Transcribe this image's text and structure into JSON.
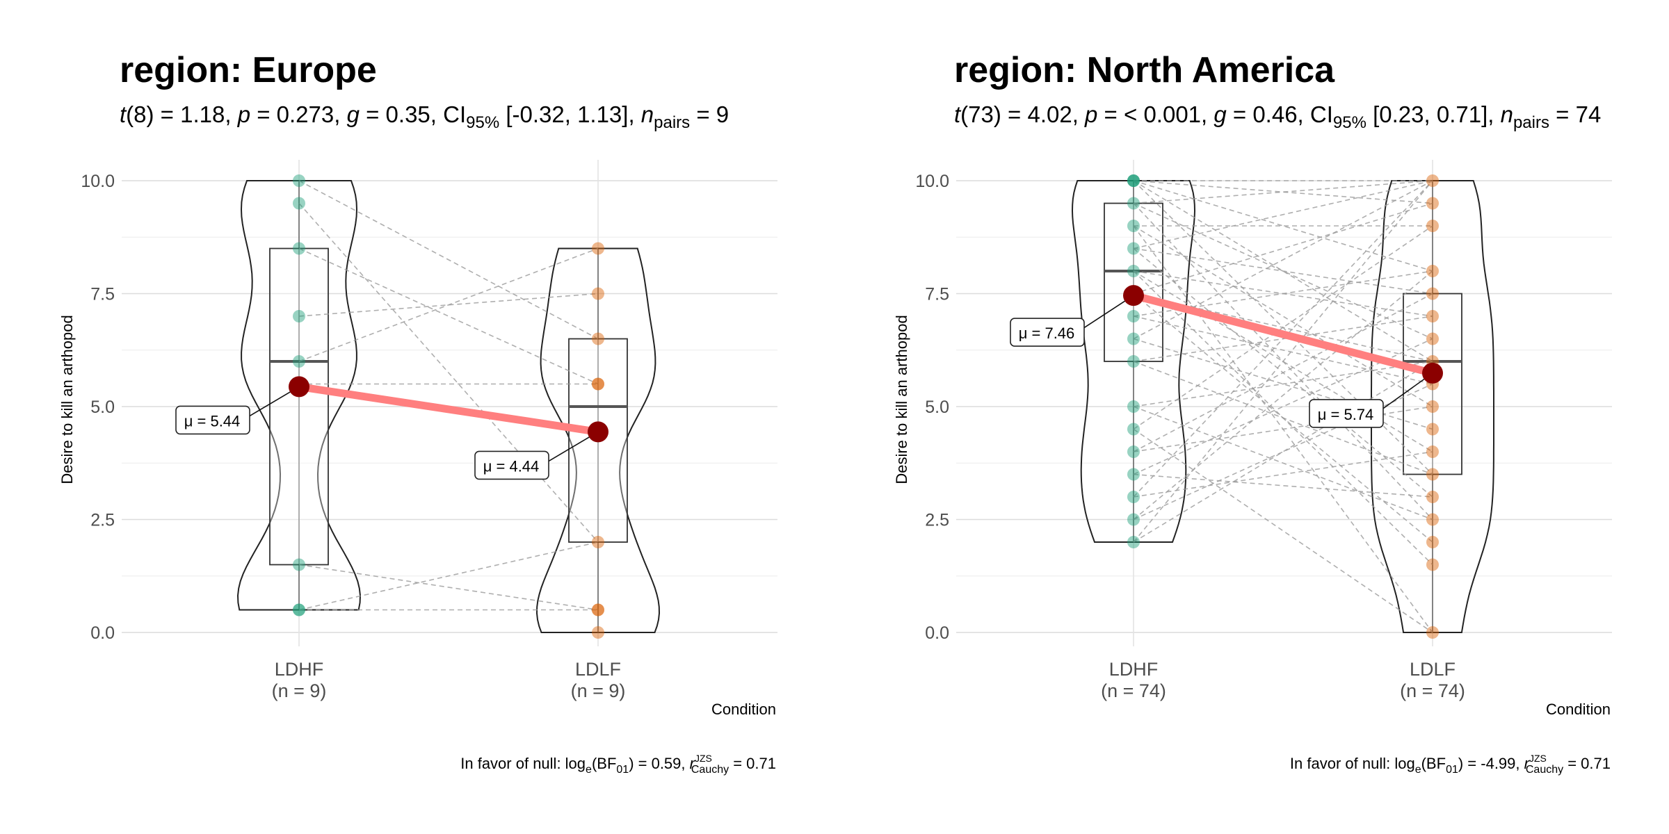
{
  "chart_data": [
    {
      "type": "violin-box-paired",
      "title": "region: Europe",
      "stats": {
        "df": "8",
        "t": "1.18",
        "p": "0.273",
        "g": "0.35",
        "ci_label": "95%",
        "ci": "[-0.32, 1.13]",
        "n_pairs": "9"
      },
      "ylabel": "Desire to kill an arthopod",
      "xlabel": "Condition",
      "ylim": [
        0,
        10
      ],
      "yticks": [
        "0.0",
        "2.5",
        "5.0",
        "7.5",
        "10.0"
      ],
      "groups": [
        {
          "name": "LDHF",
          "n_label": "(n = 9)",
          "color": "#1B9E77",
          "points": [
            10,
            9.5,
            8.5,
            7,
            6,
            5.5,
            1.5,
            0.5,
            0.5
          ],
          "violin_range": [
            0.5,
            10
          ],
          "box": {
            "q1": 1.5,
            "median": 6,
            "q3": 8.5
          },
          "mean": 5.44,
          "mean_label": "5.44"
        },
        {
          "name": "LDLF",
          "n_label": "(n = 9)",
          "color": "#D95F02",
          "points": [
            8.5,
            7.5,
            6.5,
            5.5,
            5.5,
            2,
            0.5,
            0.5,
            0
          ],
          "violin_range": [
            0,
            8.5
          ],
          "box": {
            "q1": 2,
            "median": 5,
            "q3": 6.5
          },
          "mean": 4.44,
          "mean_label": "4.44"
        }
      ],
      "pairs": [
        [
          10,
          6.5
        ],
        [
          9.5,
          2
        ],
        [
          8.5,
          5.5
        ],
        [
          7,
          7.5
        ],
        [
          6,
          8.5
        ],
        [
          5.5,
          5.5
        ],
        [
          1.5,
          0.5
        ],
        [
          0.5,
          2
        ],
        [
          0.5,
          0.5
        ]
      ],
      "bayes": {
        "prefix": "In favor of null: log",
        "sub_e": "e",
        "bf_text": "(BF",
        "bf_sub": "01",
        "value": ") = 0.59, ",
        "r": "r",
        "r_sup": "JZS",
        "r_sub": "Cauchy",
        "r_value": " = 0.71"
      }
    },
    {
      "type": "violin-box-paired",
      "title": "region: North America",
      "stats": {
        "df": "73",
        "t": "4.02",
        "p": "< 0.001",
        "g": "0.46",
        "ci_label": "95%",
        "ci": "[0.23, 0.71]",
        "n_pairs": "74"
      },
      "ylabel": "Desire to kill an arthopod",
      "xlabel": "Condition",
      "ylim": [
        0,
        10
      ],
      "yticks": [
        "0.0",
        "2.5",
        "5.0",
        "7.5",
        "10.0"
      ],
      "groups": [
        {
          "name": "LDHF",
          "n_label": "(n = 74)",
          "color": "#1B9E77",
          "points": [
            10,
            10,
            10,
            9.5,
            9,
            8.5,
            8,
            7.5,
            7,
            6.5,
            6,
            5,
            4.5,
            4,
            3.5,
            3,
            2.5,
            2
          ],
          "violin_range": [
            2,
            10
          ],
          "box": {
            "q1": 6,
            "median": 8,
            "q3": 9.5
          },
          "mean": 7.46,
          "mean_label": "7.46"
        },
        {
          "name": "LDLF",
          "n_label": "(n = 74)",
          "color": "#D95F02",
          "points": [
            10,
            9.5,
            9,
            8,
            7.5,
            7,
            6.5,
            6,
            5.5,
            5,
            4.5,
            4,
            3.5,
            3,
            2.5,
            2,
            1.5,
            0
          ],
          "violin_range": [
            0,
            10
          ],
          "box": {
            "q1": 3.5,
            "median": 6,
            "q3": 7.5
          },
          "mean": 5.74,
          "mean_label": "5.74"
        }
      ],
      "pairs": [
        [
          10,
          10
        ],
        [
          10,
          9.5
        ],
        [
          10,
          6
        ],
        [
          10,
          3.5
        ],
        [
          10,
          8
        ],
        [
          9.5,
          10
        ],
        [
          9.5,
          6.5
        ],
        [
          9.5,
          2.5
        ],
        [
          9,
          9
        ],
        [
          9,
          5
        ],
        [
          9,
          0
        ],
        [
          8.5,
          7.5
        ],
        [
          8.5,
          3
        ],
        [
          8.5,
          10
        ],
        [
          8,
          7
        ],
        [
          8,
          4
        ],
        [
          8,
          1.5
        ],
        [
          7.5,
          6
        ],
        [
          7.5,
          9.5
        ],
        [
          7.5,
          2
        ],
        [
          7,
          5.5
        ],
        [
          7,
          8
        ],
        [
          6.5,
          4.5
        ],
        [
          6.5,
          10
        ],
        [
          6,
          3.5
        ],
        [
          6,
          7
        ],
        [
          5,
          6
        ],
        [
          5,
          2.5
        ],
        [
          4.5,
          9
        ],
        [
          4.5,
          0
        ],
        [
          4,
          5
        ],
        [
          4,
          7.5
        ],
        [
          3.5,
          6.5
        ],
        [
          3.5,
          3
        ],
        [
          3,
          10
        ],
        [
          3,
          4
        ],
        [
          2.5,
          5.5
        ],
        [
          2.5,
          8
        ],
        [
          2,
          6
        ],
        [
          2,
          10
        ]
      ],
      "bayes": {
        "prefix": "In favor of null: log",
        "sub_e": "e",
        "bf_text": "(BF",
        "bf_sub": "01",
        "value": ") = -4.99, ",
        "r": "r",
        "r_sup": "JZS",
        "r_sub": "Cauchy",
        "r_value": " = 0.71"
      }
    }
  ]
}
